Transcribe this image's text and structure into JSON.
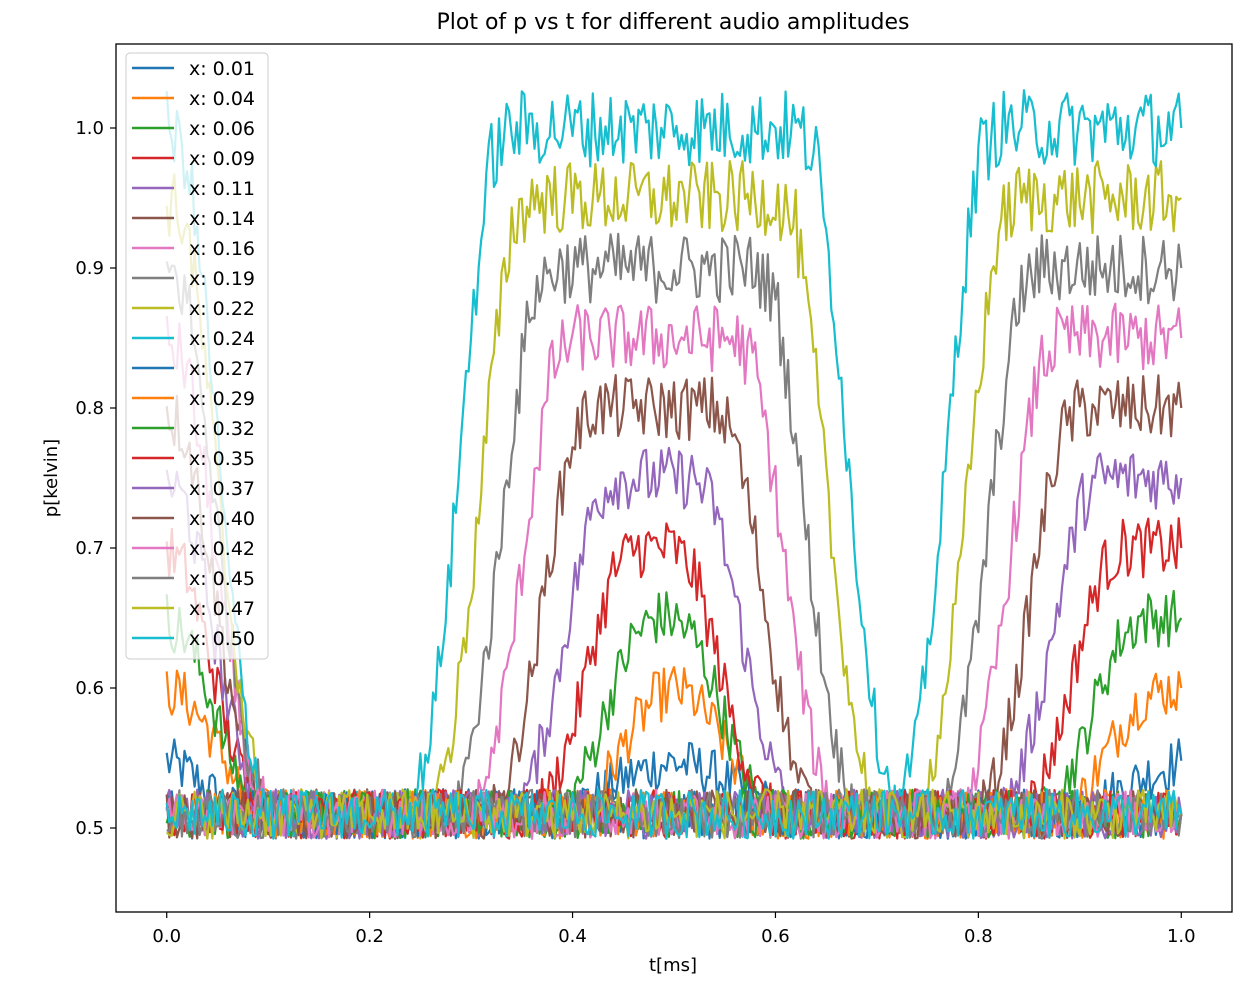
{
  "chart_data": {
    "type": "line",
    "title": "Plot of p vs t for different audio amplitudes",
    "xlabel": "t[ms]",
    "ylabel": "p[kelvin]",
    "xlim": [
      -0.05,
      1.05
    ],
    "ylim": [
      0.44,
      1.06
    ],
    "xticks": [
      "0.0",
      "0.2",
      "0.4",
      "0.6",
      "0.8",
      "1.0"
    ],
    "xtick_values": [
      0.0,
      0.2,
      0.4,
      0.6,
      0.8,
      1.0
    ],
    "yticks": [
      "0.5",
      "0.6",
      "0.7",
      "0.8",
      "0.9",
      "1.0"
    ],
    "ytick_values": [
      0.5,
      0.6,
      0.7,
      0.8,
      0.9,
      1.0
    ],
    "grid": false,
    "legend_position": "upper left",
    "x_points": [
      0.0,
      0.02,
      0.04,
      0.06,
      0.08,
      0.1,
      0.12,
      0.14,
      0.16,
      0.18,
      0.2,
      0.22,
      0.24,
      0.26,
      0.28,
      0.3,
      0.32,
      0.34,
      0.36,
      0.38,
      0.4,
      0.42,
      0.44,
      0.46,
      0.48,
      0.5,
      0.52,
      0.54,
      0.56,
      0.58,
      0.6,
      0.62,
      0.64,
      0.66,
      0.68,
      0.7,
      0.72,
      0.74,
      0.76,
      0.78,
      0.8,
      0.82,
      0.84,
      0.86,
      0.88,
      0.9,
      0.92,
      0.94,
      0.96,
      0.98,
      1.0
    ],
    "series": [
      {
        "name": "x: 0.01",
        "color": "#1f77b4",
        "values": [
          0.548,
          0.54,
          0.528,
          0.515,
          0.51,
          0.51,
          0.51,
          0.51,
          0.51,
          0.51,
          0.51,
          0.51,
          0.51,
          0.51,
          0.51,
          0.51,
          0.51,
          0.51,
          0.51,
          0.51,
          0.515,
          0.522,
          0.53,
          0.538,
          0.544,
          0.547,
          0.544,
          0.538,
          0.53,
          0.522,
          0.515,
          0.51,
          0.51,
          0.51,
          0.51,
          0.51,
          0.51,
          0.51,
          0.51,
          0.51,
          0.51,
          0.51,
          0.51,
          0.51,
          0.51,
          0.515,
          0.52,
          0.527,
          0.535,
          0.542,
          0.548
        ]
      },
      {
        "name": "x: 0.04",
        "color": "#ff7f0e",
        "values": [
          0.6,
          0.592,
          0.572,
          0.545,
          0.52,
          0.51,
          0.51,
          0.51,
          0.51,
          0.51,
          0.51,
          0.51,
          0.51,
          0.51,
          0.51,
          0.51,
          0.51,
          0.51,
          0.51,
          0.51,
          0.51,
          0.52,
          0.545,
          0.572,
          0.592,
          0.6,
          0.592,
          0.572,
          0.545,
          0.52,
          0.51,
          0.51,
          0.51,
          0.51,
          0.51,
          0.51,
          0.51,
          0.51,
          0.51,
          0.51,
          0.51,
          0.51,
          0.51,
          0.51,
          0.51,
          0.52,
          0.545,
          0.572,
          0.592,
          0.598,
          0.6
        ]
      },
      {
        "name": "x: 0.06",
        "color": "#2ca02c",
        "values": [
          0.65,
          0.636,
          0.6,
          0.555,
          0.522,
          0.51,
          0.51,
          0.51,
          0.51,
          0.51,
          0.51,
          0.51,
          0.51,
          0.51,
          0.51,
          0.51,
          0.51,
          0.51,
          0.51,
          0.51,
          0.522,
          0.555,
          0.6,
          0.636,
          0.65,
          0.65,
          0.636,
          0.6,
          0.555,
          0.522,
          0.51,
          0.51,
          0.51,
          0.51,
          0.51,
          0.51,
          0.51,
          0.51,
          0.51,
          0.51,
          0.51,
          0.51,
          0.51,
          0.51,
          0.522,
          0.555,
          0.6,
          0.636,
          0.65,
          0.65,
          0.65
        ]
      },
      {
        "name": "x: 0.09",
        "color": "#d62728",
        "values": [
          0.7,
          0.682,
          0.63,
          0.57,
          0.528,
          0.51,
          0.51,
          0.51,
          0.51,
          0.51,
          0.51,
          0.51,
          0.51,
          0.51,
          0.51,
          0.51,
          0.51,
          0.51,
          0.51,
          0.528,
          0.57,
          0.63,
          0.682,
          0.7,
          0.7,
          0.7,
          0.682,
          0.63,
          0.57,
          0.528,
          0.51,
          0.51,
          0.51,
          0.51,
          0.51,
          0.51,
          0.51,
          0.51,
          0.51,
          0.51,
          0.51,
          0.51,
          0.51,
          0.528,
          0.57,
          0.63,
          0.682,
          0.7,
          0.7,
          0.7,
          0.7
        ]
      },
      {
        "name": "x: 0.11",
        "color": "#9467bd",
        "values": [
          0.75,
          0.73,
          0.665,
          0.59,
          0.535,
          0.51,
          0.51,
          0.51,
          0.51,
          0.51,
          0.51,
          0.51,
          0.51,
          0.51,
          0.51,
          0.51,
          0.51,
          0.51,
          0.535,
          0.59,
          0.665,
          0.73,
          0.75,
          0.75,
          0.75,
          0.75,
          0.75,
          0.73,
          0.665,
          0.59,
          0.535,
          0.51,
          0.51,
          0.51,
          0.51,
          0.51,
          0.51,
          0.51,
          0.51,
          0.51,
          0.51,
          0.51,
          0.535,
          0.59,
          0.665,
          0.73,
          0.75,
          0.75,
          0.75,
          0.75,
          0.75
        ]
      },
      {
        "name": "x: 0.14",
        "color": "#8c564b",
        "values": [
          0.8,
          0.78,
          0.705,
          0.61,
          0.54,
          0.51,
          0.51,
          0.51,
          0.51,
          0.51,
          0.51,
          0.51,
          0.51,
          0.51,
          0.51,
          0.51,
          0.51,
          0.54,
          0.61,
          0.705,
          0.78,
          0.8,
          0.8,
          0.8,
          0.8,
          0.8,
          0.8,
          0.8,
          0.78,
          0.705,
          0.61,
          0.54,
          0.51,
          0.51,
          0.51,
          0.51,
          0.51,
          0.51,
          0.51,
          0.51,
          0.51,
          0.54,
          0.61,
          0.705,
          0.78,
          0.8,
          0.8,
          0.8,
          0.8,
          0.8,
          0.8
        ]
      },
      {
        "name": "x: 0.16",
        "color": "#e377c2",
        "values": [
          0.85,
          0.83,
          0.74,
          0.63,
          0.545,
          0.51,
          0.51,
          0.51,
          0.51,
          0.51,
          0.51,
          0.51,
          0.51,
          0.51,
          0.51,
          0.51,
          0.545,
          0.63,
          0.74,
          0.83,
          0.85,
          0.85,
          0.85,
          0.85,
          0.85,
          0.85,
          0.85,
          0.85,
          0.85,
          0.83,
          0.74,
          0.63,
          0.545,
          0.51,
          0.51,
          0.51,
          0.51,
          0.51,
          0.51,
          0.51,
          0.545,
          0.63,
          0.74,
          0.83,
          0.85,
          0.85,
          0.85,
          0.85,
          0.85,
          0.85,
          0.85
        ]
      },
      {
        "name": "x: 0.19",
        "color": "#7f7f7f",
        "values": [
          0.9,
          0.88,
          0.78,
          0.65,
          0.555,
          0.51,
          0.51,
          0.51,
          0.51,
          0.51,
          0.51,
          0.51,
          0.51,
          0.51,
          0.51,
          0.555,
          0.65,
          0.78,
          0.88,
          0.9,
          0.9,
          0.9,
          0.9,
          0.9,
          0.9,
          0.9,
          0.9,
          0.9,
          0.9,
          0.9,
          0.88,
          0.78,
          0.65,
          0.555,
          0.51,
          0.51,
          0.51,
          0.51,
          0.51,
          0.555,
          0.65,
          0.78,
          0.88,
          0.9,
          0.9,
          0.9,
          0.9,
          0.9,
          0.9,
          0.9,
          0.9
        ]
      },
      {
        "name": "x: 0.22",
        "color": "#bcbd22",
        "values": [
          0.95,
          0.93,
          0.82,
          0.67,
          0.56,
          0.51,
          0.51,
          0.51,
          0.51,
          0.51,
          0.51,
          0.51,
          0.51,
          0.51,
          0.56,
          0.67,
          0.82,
          0.93,
          0.95,
          0.95,
          0.95,
          0.95,
          0.95,
          0.95,
          0.95,
          0.95,
          0.95,
          0.95,
          0.95,
          0.95,
          0.95,
          0.93,
          0.82,
          0.67,
          0.56,
          0.51,
          0.51,
          0.51,
          0.56,
          0.67,
          0.82,
          0.93,
          0.95,
          0.95,
          0.95,
          0.95,
          0.95,
          0.95,
          0.95,
          0.95,
          0.95
        ]
      },
      {
        "name": "x: 0.24",
        "color": "#17becf",
        "values": [
          1.0,
          0.98,
          0.86,
          0.69,
          0.565,
          0.51,
          0.51,
          0.51,
          0.51,
          0.51,
          0.51,
          0.51,
          0.51,
          0.565,
          0.69,
          0.86,
          0.98,
          1.0,
          1.0,
          1.0,
          1.0,
          1.0,
          1.0,
          1.0,
          1.0,
          1.0,
          1.0,
          1.0,
          1.0,
          1.0,
          1.0,
          1.0,
          0.98,
          0.86,
          0.69,
          0.565,
          0.51,
          0.565,
          0.69,
          0.86,
          0.98,
          1.0,
          1.0,
          1.0,
          1.0,
          1.0,
          1.0,
          1.0,
          1.0,
          1.0,
          1.0
        ]
      },
      {
        "name": "x: 0.27",
        "color": "#1f77b4",
        "values": [
          0.51,
          0.51,
          0.51,
          0.51,
          0.51,
          0.51,
          0.51,
          0.51,
          0.51,
          0.51,
          0.51,
          0.51,
          0.51,
          0.51,
          0.51,
          0.51,
          0.51,
          0.51,
          0.51,
          0.51,
          0.51,
          0.51,
          0.51,
          0.51,
          0.51,
          0.51,
          0.51,
          0.51,
          0.51,
          0.51,
          0.51,
          0.51,
          0.51,
          0.51,
          0.51,
          0.51,
          0.51,
          0.51,
          0.51,
          0.51,
          0.51,
          0.51,
          0.51,
          0.51,
          0.51,
          0.51,
          0.51,
          0.51,
          0.51,
          0.51,
          0.51
        ]
      },
      {
        "name": "x: 0.29",
        "color": "#ff7f0e",
        "values": [
          0.51,
          0.51,
          0.51,
          0.51,
          0.51,
          0.51,
          0.51,
          0.51,
          0.51,
          0.51,
          0.51,
          0.51,
          0.51,
          0.51,
          0.51,
          0.51,
          0.51,
          0.51,
          0.51,
          0.51,
          0.51,
          0.51,
          0.51,
          0.51,
          0.51,
          0.51,
          0.51,
          0.51,
          0.51,
          0.51,
          0.51,
          0.51,
          0.51,
          0.51,
          0.51,
          0.51,
          0.51,
          0.51,
          0.51,
          0.51,
          0.51,
          0.51,
          0.51,
          0.51,
          0.51,
          0.51,
          0.51,
          0.51,
          0.51,
          0.51,
          0.51
        ]
      },
      {
        "name": "x: 0.32",
        "color": "#2ca02c",
        "values": [
          0.51,
          0.51,
          0.51,
          0.51,
          0.51,
          0.51,
          0.51,
          0.51,
          0.51,
          0.51,
          0.51,
          0.51,
          0.51,
          0.51,
          0.51,
          0.51,
          0.51,
          0.51,
          0.51,
          0.51,
          0.51,
          0.51,
          0.51,
          0.51,
          0.51,
          0.51,
          0.51,
          0.51,
          0.51,
          0.51,
          0.51,
          0.51,
          0.51,
          0.51,
          0.51,
          0.51,
          0.51,
          0.51,
          0.51,
          0.51,
          0.51,
          0.51,
          0.51,
          0.51,
          0.51,
          0.51,
          0.51,
          0.51,
          0.51,
          0.51,
          0.51
        ]
      },
      {
        "name": "x: 0.35",
        "color": "#d62728",
        "values": [
          0.51,
          0.51,
          0.51,
          0.51,
          0.51,
          0.51,
          0.51,
          0.51,
          0.51,
          0.51,
          0.51,
          0.51,
          0.51,
          0.51,
          0.51,
          0.51,
          0.51,
          0.51,
          0.51,
          0.51,
          0.51,
          0.51,
          0.51,
          0.51,
          0.51,
          0.51,
          0.51,
          0.51,
          0.51,
          0.51,
          0.51,
          0.51,
          0.51,
          0.51,
          0.51,
          0.51,
          0.51,
          0.51,
          0.51,
          0.51,
          0.51,
          0.51,
          0.51,
          0.51,
          0.51,
          0.51,
          0.51,
          0.51,
          0.51,
          0.51,
          0.51
        ]
      },
      {
        "name": "x: 0.37",
        "color": "#9467bd",
        "values": [
          0.51,
          0.51,
          0.51,
          0.51,
          0.51,
          0.51,
          0.51,
          0.51,
          0.51,
          0.51,
          0.51,
          0.51,
          0.51,
          0.51,
          0.51,
          0.51,
          0.51,
          0.51,
          0.51,
          0.51,
          0.51,
          0.51,
          0.51,
          0.51,
          0.51,
          0.51,
          0.51,
          0.51,
          0.51,
          0.51,
          0.51,
          0.51,
          0.51,
          0.51,
          0.51,
          0.51,
          0.51,
          0.51,
          0.51,
          0.51,
          0.51,
          0.51,
          0.51,
          0.51,
          0.51,
          0.51,
          0.51,
          0.51,
          0.51,
          0.51,
          0.51
        ]
      },
      {
        "name": "x: 0.40",
        "color": "#8c564b",
        "values": [
          0.51,
          0.51,
          0.51,
          0.51,
          0.51,
          0.51,
          0.51,
          0.51,
          0.51,
          0.51,
          0.51,
          0.51,
          0.51,
          0.51,
          0.51,
          0.51,
          0.51,
          0.51,
          0.51,
          0.51,
          0.51,
          0.51,
          0.51,
          0.51,
          0.51,
          0.51,
          0.51,
          0.51,
          0.51,
          0.51,
          0.51,
          0.51,
          0.51,
          0.51,
          0.51,
          0.51,
          0.51,
          0.51,
          0.51,
          0.51,
          0.51,
          0.51,
          0.51,
          0.51,
          0.51,
          0.51,
          0.51,
          0.51,
          0.51,
          0.51,
          0.51
        ]
      },
      {
        "name": "x: 0.42",
        "color": "#e377c2",
        "values": [
          0.51,
          0.51,
          0.51,
          0.51,
          0.51,
          0.51,
          0.51,
          0.51,
          0.51,
          0.51,
          0.51,
          0.51,
          0.51,
          0.51,
          0.51,
          0.51,
          0.51,
          0.51,
          0.51,
          0.51,
          0.51,
          0.51,
          0.51,
          0.51,
          0.51,
          0.51,
          0.51,
          0.51,
          0.51,
          0.51,
          0.51,
          0.51,
          0.51,
          0.51,
          0.51,
          0.51,
          0.51,
          0.51,
          0.51,
          0.51,
          0.51,
          0.51,
          0.51,
          0.51,
          0.51,
          0.51,
          0.51,
          0.51,
          0.51,
          0.51,
          0.51
        ]
      },
      {
        "name": "x: 0.45",
        "color": "#7f7f7f",
        "values": [
          0.51,
          0.51,
          0.51,
          0.51,
          0.51,
          0.51,
          0.51,
          0.51,
          0.51,
          0.51,
          0.51,
          0.51,
          0.51,
          0.51,
          0.51,
          0.51,
          0.51,
          0.51,
          0.51,
          0.51,
          0.51,
          0.51,
          0.51,
          0.51,
          0.51,
          0.51,
          0.51,
          0.51,
          0.51,
          0.51,
          0.51,
          0.51,
          0.51,
          0.51,
          0.51,
          0.51,
          0.51,
          0.51,
          0.51,
          0.51,
          0.51,
          0.51,
          0.51,
          0.51,
          0.51,
          0.51,
          0.51,
          0.51,
          0.51,
          0.51,
          0.51
        ]
      },
      {
        "name": "x: 0.47",
        "color": "#bcbd22",
        "values": [
          0.51,
          0.51,
          0.51,
          0.51,
          0.51,
          0.51,
          0.51,
          0.51,
          0.51,
          0.51,
          0.51,
          0.51,
          0.51,
          0.51,
          0.51,
          0.51,
          0.51,
          0.51,
          0.51,
          0.51,
          0.51,
          0.51,
          0.51,
          0.51,
          0.51,
          0.51,
          0.51,
          0.51,
          0.51,
          0.51,
          0.51,
          0.51,
          0.51,
          0.51,
          0.51,
          0.51,
          0.51,
          0.51,
          0.51,
          0.51,
          0.51,
          0.51,
          0.51,
          0.51,
          0.51,
          0.51,
          0.51,
          0.51,
          0.51,
          0.51,
          0.51
        ]
      },
      {
        "name": "x: 0.50",
        "color": "#17becf",
        "values": [
          0.51,
          0.51,
          0.51,
          0.51,
          0.51,
          0.51,
          0.51,
          0.51,
          0.51,
          0.51,
          0.51,
          0.51,
          0.51,
          0.51,
          0.51,
          0.51,
          0.51,
          0.51,
          0.51,
          0.51,
          0.51,
          0.51,
          0.51,
          0.51,
          0.51,
          0.51,
          0.51,
          0.51,
          0.51,
          0.51,
          0.51,
          0.51,
          0.51,
          0.51,
          0.51,
          0.51,
          0.51,
          0.51,
          0.51,
          0.51,
          0.51,
          0.51,
          0.51,
          0.51,
          0.51,
          0.51,
          0.51,
          0.51,
          0.51,
          0.51,
          0.51
        ]
      }
    ]
  }
}
